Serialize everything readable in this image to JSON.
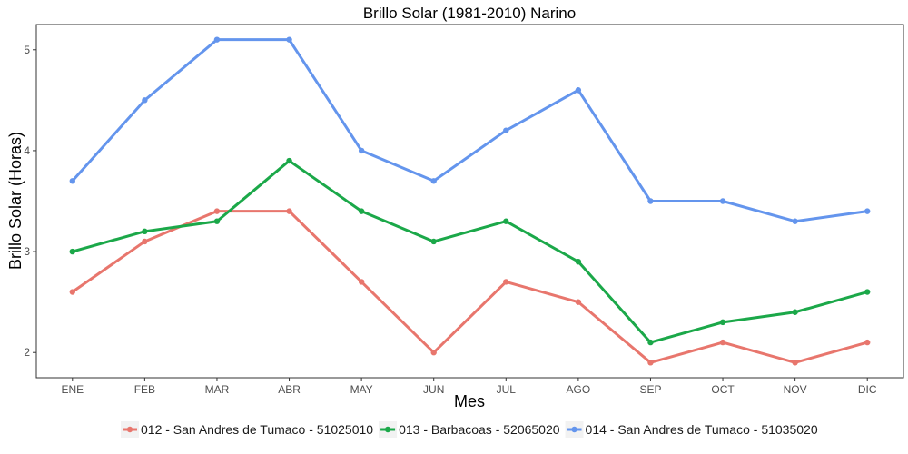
{
  "chart_data": {
    "type": "line",
    "title": "Brillo Solar (1981-2010)  Narino",
    "xlabel": "Mes",
    "ylabel": "Brillo Solar (Horas)",
    "categories": [
      "ENE",
      "FEB",
      "MAR",
      "ABR",
      "MAY",
      "JUN",
      "JUL",
      "AGO",
      "SEP",
      "OCT",
      "NOV",
      "DIC"
    ],
    "ylim": [
      1.75,
      5.25
    ],
    "yticks": [
      2,
      3,
      4,
      5
    ],
    "grid": false,
    "legend_position": "bottom",
    "series": [
      {
        "name": "012 - San Andres de Tumaco - 51025010",
        "color": "#E8766D",
        "values": [
          2.6,
          3.1,
          3.4,
          3.4,
          2.7,
          2.0,
          2.7,
          2.5,
          1.9,
          2.1,
          1.9,
          2.1
        ]
      },
      {
        "name": "013 - Barbacoas - 52065020",
        "color": "#1BA849",
        "values": [
          3.0,
          3.2,
          3.3,
          3.9,
          3.4,
          3.1,
          3.3,
          2.9,
          2.1,
          2.3,
          2.4,
          2.6
        ]
      },
      {
        "name": "014 - San Andres de Tumaco - 51035020",
        "color": "#6495ED",
        "values": [
          3.7,
          4.5,
          5.1,
          5.1,
          4.0,
          3.7,
          4.2,
          4.6,
          3.5,
          3.5,
          3.3,
          3.4
        ]
      }
    ]
  }
}
